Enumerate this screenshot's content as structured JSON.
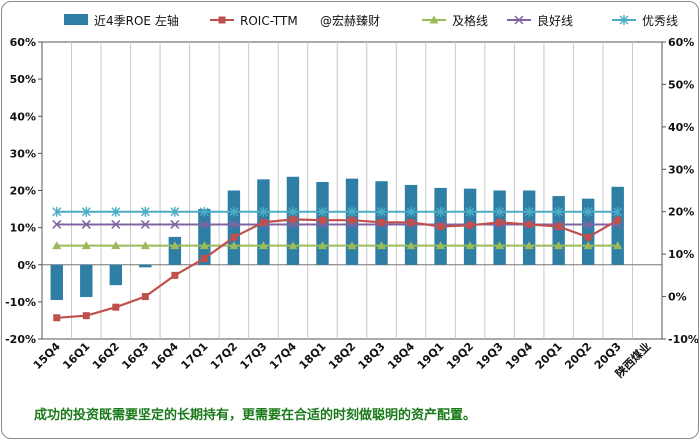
{
  "chart_data": {
    "type": "bar",
    "categories": [
      "15Q4",
      "16Q1",
      "16Q2",
      "16Q3",
      "16Q4",
      "17Q1",
      "17Q2",
      "17Q3",
      "17Q4",
      "18Q1",
      "18Q2",
      "18Q3",
      "18Q4",
      "19Q1",
      "19Q2",
      "19Q3",
      "19Q4",
      "20Q1",
      "20Q2",
      "20Q3"
    ],
    "xlabel_extra": "陕西煤业",
    "ylim_left": [
      -20,
      60
    ],
    "ylim_right": [
      -10,
      60
    ],
    "yticks_left": [
      "-20%",
      "-10%",
      "0%",
      "10%",
      "20%",
      "30%",
      "40%",
      "50%",
      "60%"
    ],
    "yticks_right": [
      "-10%",
      "0%",
      "10%",
      "20%",
      "30%",
      "40%",
      "50%",
      "60%"
    ],
    "grid": "vertical",
    "legend_position": "top",
    "series": [
      {
        "name": "近4季ROE 左轴",
        "type": "bar",
        "axis": "left",
        "color": "#2e7ea6",
        "values": [
          -9.5,
          -8.7,
          -5.5,
          -0.7,
          7.5,
          15.0,
          20.0,
          23.0,
          23.7,
          22.3,
          23.2,
          22.5,
          21.5,
          20.7,
          20.5,
          20.0,
          20.0,
          18.5,
          17.8,
          21.0
        ]
      },
      {
        "name": "ROIC-TTM",
        "type": "line",
        "axis": "right",
        "color": "#c0504d",
        "marker": "square",
        "values": [
          -5,
          -4.5,
          -2.5,
          0,
          5,
          9,
          14,
          17.5,
          18.2,
          18,
          18,
          17.5,
          17.5,
          16.5,
          16.8,
          17.5,
          17,
          16.5,
          14,
          18
        ]
      },
      {
        "name": "@宏赫臻财",
        "type": "label",
        "color": "#333333"
      },
      {
        "name": "及格线",
        "type": "line",
        "axis": "right",
        "color": "#9bbb59",
        "marker": "triangle",
        "value": 12
      },
      {
        "name": "良好线",
        "type": "line",
        "axis": "right",
        "color": "#8064a2",
        "marker": "x",
        "value": 17
      },
      {
        "name": "优秀线",
        "type": "line",
        "axis": "right",
        "color": "#4bacc6",
        "marker": "star",
        "value": 20
      }
    ]
  },
  "caption": "成功的投资既需要坚定的长期持有，更需要在合适的时刻做聪明的资产配置。"
}
